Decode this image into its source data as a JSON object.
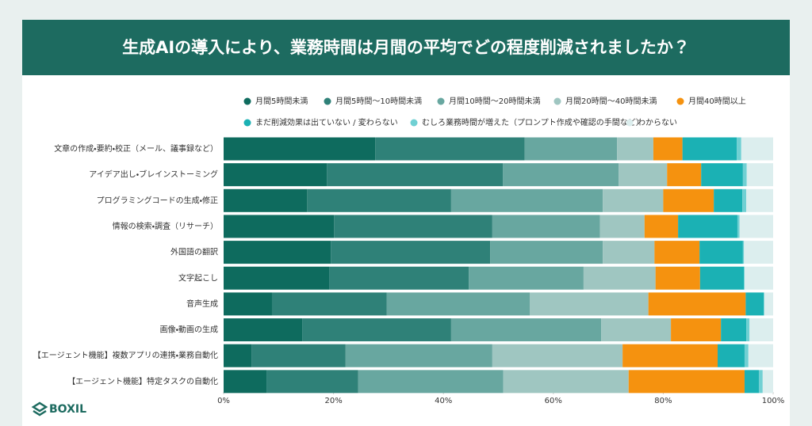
{
  "chart_data": {
    "type": "stacked-barh",
    "title": "生成AIの導入により、業務時間は月間の平均でどの程度削減されましたか？",
    "logo": "BOXIL",
    "categories": [
      "文章の作成・要約・校正（メール、議事録など）",
      "アイデア出し・ブレインストーミング",
      "プログラミングコードの生成・修正",
      "情報の検索・調査（リサーチ）",
      "外国語の翻訳",
      "文字起こし",
      "音声生成",
      "画像・動画の生成",
      "【エージェント機能】複数アプリの連携・業務自動化",
      "【エージェント機能】特定タスクの自動化"
    ],
    "series": [
      {
        "name": "月間5時間未満",
        "color": "#0e6b5e",
        "values": [
          27.6,
          18.8,
          15.2,
          20.1,
          19.5,
          19.2,
          8.8,
          14.3,
          5.1,
          7.8
        ]
      },
      {
        "name": "月間5時間〜10時間未満",
        "color": "#2f8178",
        "values": [
          27.2,
          32.0,
          26.2,
          28.8,
          29.0,
          25.4,
          20.9,
          27.1,
          17.1,
          16.7
        ]
      },
      {
        "name": "月間10時間〜20時間未満",
        "color": "#68a7a0",
        "values": [
          16.8,
          21.1,
          27.6,
          19.6,
          20.5,
          20.9,
          26.0,
          27.3,
          26.7,
          26.4
        ]
      },
      {
        "name": "月間20時間〜40時間未満",
        "color": "#9fc6c1",
        "values": [
          6.6,
          8.8,
          11.0,
          8.1,
          9.4,
          13.1,
          21.6,
          12.7,
          23.7,
          22.8
        ]
      },
      {
        "name": "月間40時間以上",
        "color": "#f5920f",
        "values": [
          5.3,
          6.2,
          9.2,
          6.1,
          8.2,
          8.1,
          17.7,
          9.1,
          17.3,
          21.1
        ]
      },
      {
        "name": "まだ削減効果は出ていない / 変わらない",
        "color": "#1bb1b4",
        "values": [
          9.9,
          7.6,
          5.2,
          10.8,
          7.9,
          8.0,
          3.3,
          4.6,
          4.9,
          2.6
        ]
      },
      {
        "name": "むしろ業務時間が増えた（プロンプト作成や確認の手間など）",
        "color": "#70d0d3",
        "values": [
          0.8,
          0.7,
          0.7,
          0.4,
          0.2,
          0.1,
          0.1,
          0.6,
          0.7,
          0.7
        ]
      },
      {
        "name": "わからない",
        "color": "#dceeee",
        "values": [
          5.8,
          4.8,
          4.9,
          6.1,
          5.3,
          5.2,
          1.6,
          4.3,
          4.5,
          1.9
        ]
      }
    ],
    "xlim": [
      0,
      100
    ],
    "xticks": [
      {
        "value": 0,
        "label": "0%"
      },
      {
        "value": 20,
        "label": "20%"
      },
      {
        "value": 40,
        "label": "40%"
      },
      {
        "value": 60,
        "label": "60%"
      },
      {
        "value": 80,
        "label": "80%"
      },
      {
        "value": 100,
        "label": "100%"
      }
    ]
  }
}
